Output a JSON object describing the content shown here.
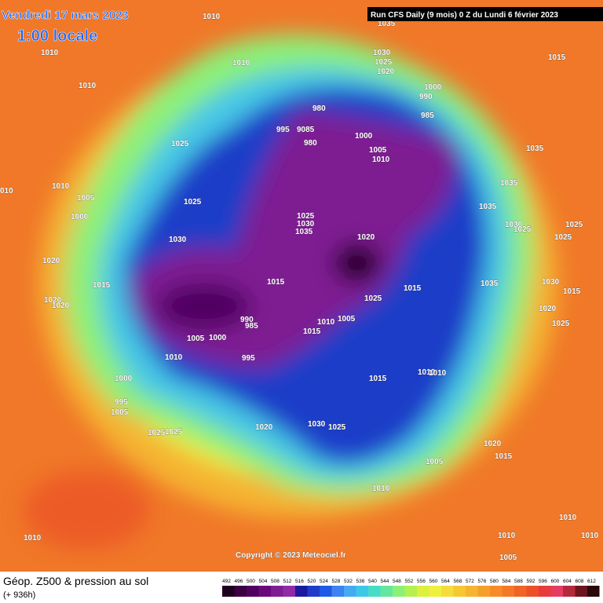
{
  "header": {
    "date": "Vendredi 17 mars 2023",
    "time": "1:00 locale",
    "run_info": "Run CFS Daily (9 mois) 0 Z du Lundi 6 février 2023"
  },
  "map": {
    "isobar_labels": [
      "1010",
      "1010",
      "1010",
      "1010",
      "1035",
      "1030",
      "1025",
      "1020",
      "1015",
      "1000",
      "990",
      "985",
      "980",
      "980",
      "995",
      "9085",
      "1000",
      "1005",
      "1010",
      "1025",
      "1035",
      "010",
      "1010",
      "1005",
      "1000",
      "1025",
      "1025",
      "1030",
      "1035",
      "1035",
      "1035",
      "1030",
      "1025",
      "1025",
      "1025",
      "1030",
      "1020",
      "1020",
      "1015",
      "1015",
      "1015",
      "1035",
      "1030",
      "1015",
      "1020",
      "1020",
      "1025",
      "1020",
      "1025",
      "990",
      "985",
      "1010",
      "1005",
      "1015",
      "1005",
      "1000",
      "1010",
      "995",
      "1015",
      "1010",
      "1010",
      "1000",
      "995",
      "1005",
      "1025",
      "1025",
      "1020",
      "1030",
      "1025",
      "1020",
      "1015",
      "1005",
      "1010",
      "1010",
      "1010",
      "1010",
      "1010",
      "1005"
    ],
    "copyright": "Copyright © 2023 Meteociel.fr"
  },
  "footer": {
    "title": "Géop. Z500 & pression au sol",
    "subtitle": "(+ 936h)"
  },
  "legend": {
    "levels": [
      492,
      496,
      500,
      504,
      508,
      512,
      516,
      520,
      524,
      528,
      532,
      536,
      540,
      544,
      548,
      552,
      556,
      560,
      564,
      568,
      572,
      576,
      580,
      584,
      588,
      592,
      596,
      600,
      604,
      608,
      612
    ],
    "colors": [
      "#200020",
      "#3a0040",
      "#500060",
      "#6a0a7a",
      "#7e1e92",
      "#922aa8",
      "#1a1aa0",
      "#1e3cc8",
      "#1e5ae6",
      "#3c82f0",
      "#46aaf0",
      "#3cc8e6",
      "#46dcc8",
      "#64e6a0",
      "#8cf078",
      "#b4f050",
      "#dcf03c",
      "#f0f03c",
      "#f5dc3c",
      "#f5c832",
      "#f5b432",
      "#f5a028",
      "#f58c28",
      "#f57828",
      "#f06428",
      "#eb5028",
      "#e63c3c",
      "#e63c64",
      "#b4283c",
      "#6e141e",
      "#280a0a"
    ]
  }
}
